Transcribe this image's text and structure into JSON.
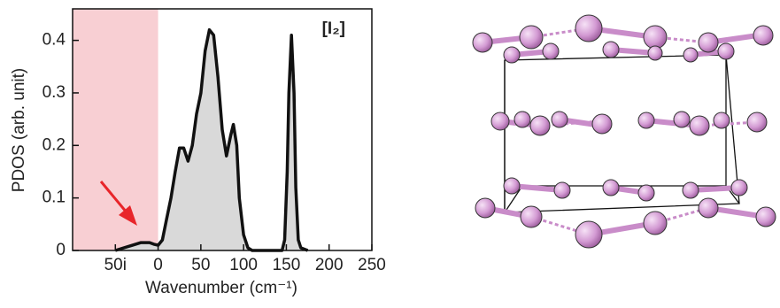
{
  "chart_data": {
    "type": "area",
    "x_label": "Wavenumber (cm⁻¹)",
    "y_label": "PDOS (arb. unit)",
    "annotation": "[I₂]",
    "x": [
      -50,
      -40,
      -30,
      -20,
      -10,
      -5,
      0,
      5,
      10,
      15,
      20,
      25,
      30,
      35,
      40,
      45,
      50,
      55,
      60,
      65,
      70,
      75,
      80,
      85,
      88,
      92,
      95,
      100,
      105,
      110,
      145,
      148,
      151,
      153,
      156,
      159,
      161,
      164,
      167,
      175
    ],
    "values": [
      0,
      0.005,
      0.01,
      0.015,
      0.015,
      0.012,
      0.01,
      0.02,
      0.06,
      0.1,
      0.15,
      0.195,
      0.195,
      0.17,
      0.2,
      0.26,
      0.3,
      0.38,
      0.42,
      0.41,
      0.33,
      0.23,
      0.18,
      0.22,
      0.24,
      0.2,
      0.1,
      0.03,
      0.005,
      0,
      0,
      0.02,
      0.15,
      0.3,
      0.41,
      0.3,
      0.12,
      0.02,
      0.005,
      0
    ],
    "color": "#111111",
    "fill": "#d9d9d9",
    "imaginary_shade": "#f8cfd3",
    "xlim": [
      -100,
      250
    ],
    "xticks": [
      {
        "value": -50,
        "label": "50i"
      },
      0,
      50,
      100,
      150,
      200,
      250
    ],
    "ylim": [
      0,
      0.46
    ],
    "yticks": [
      0,
      0.1,
      0.2,
      0.3,
      0.4
    ]
  }
}
